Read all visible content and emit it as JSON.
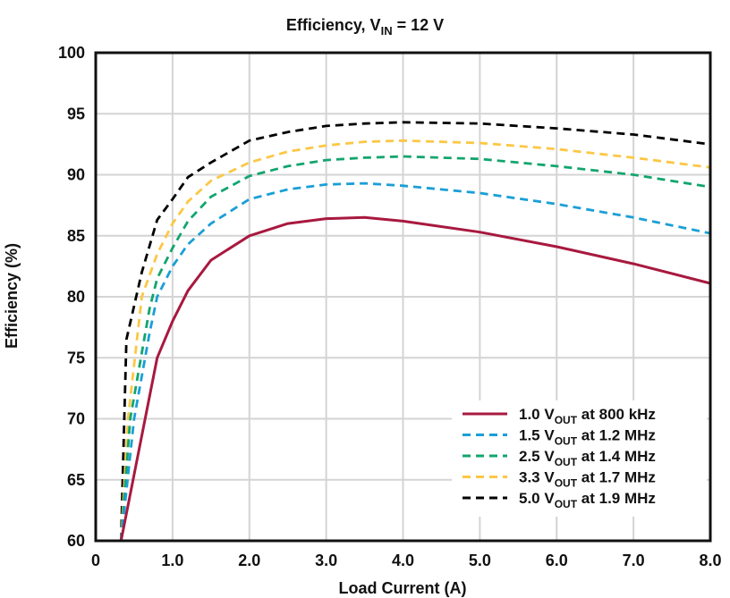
{
  "chart_data": {
    "type": "line",
    "title": {
      "main": "Efficiency, V",
      "sub": "IN",
      "suffix": " = 12 V"
    },
    "xlabel": "Load Current (A)",
    "ylabel": "Efficiency (%)",
    "xlim": [
      0,
      8
    ],
    "ylim": [
      60,
      100
    ],
    "xticks": [
      "0",
      "1.0",
      "2.0",
      "3.0",
      "4.0",
      "5.0",
      "6.0",
      "7.0",
      "8.0"
    ],
    "yticks": [
      "60",
      "65",
      "70",
      "75",
      "80",
      "85",
      "90",
      "95",
      "100"
    ],
    "grid": true,
    "legend_position": "bottom-right",
    "series": [
      {
        "name": {
          "main": "1.0 V",
          "sub": "OUT",
          "suffix": " at 800 kHz"
        },
        "color": "#a8193f",
        "dash": "solid",
        "x": [
          0.33,
          0.8,
          1.0,
          1.2,
          1.5,
          2.0,
          2.5,
          3.0,
          3.5,
          4.0,
          5.0,
          6.0,
          7.0,
          8.0
        ],
        "y": [
          60,
          75,
          78,
          80.5,
          83,
          85,
          86,
          86.4,
          86.5,
          86.2,
          85.3,
          84.1,
          82.7,
          81.1
        ]
      },
      {
        "name": {
          "main": "1.5 V",
          "sub": "OUT",
          "suffix": " at 1.2 MHz"
        },
        "color": "#1a9fd6",
        "dash": "dashed",
        "x": [
          0.33,
          0.5,
          0.7,
          0.8,
          1.0,
          1.2,
          1.5,
          2.0,
          2.5,
          3.0,
          3.5,
          4.0,
          5.0,
          6.0,
          7.0,
          8.0
        ],
        "y": [
          60,
          70,
          77,
          80,
          82.5,
          84.3,
          86,
          88,
          88.8,
          89.2,
          89.3,
          89.1,
          88.5,
          87.6,
          86.5,
          85.2
        ]
      },
      {
        "name": {
          "main": "2.5 V",
          "sub": "OUT",
          "suffix": " at 1.4 MHz"
        },
        "color": "#12a56e",
        "dash": "dashed",
        "x": [
          0.33,
          0.45,
          0.7,
          0.8,
          1.0,
          1.2,
          1.5,
          2.0,
          2.5,
          3.0,
          3.5,
          4.0,
          5.0,
          6.0,
          7.0,
          8.0
        ],
        "y": [
          60,
          70,
          79,
          81.5,
          84,
          86.2,
          88.2,
          89.9,
          90.7,
          91.2,
          91.4,
          91.5,
          91.3,
          90.7,
          90.0,
          89.0
        ]
      },
      {
        "name": {
          "main": "3.3 V",
          "sub": "OUT",
          "suffix": " at 1.7 MHz"
        },
        "color": "#fcc745",
        "dash": "dashed",
        "x": [
          0.33,
          0.42,
          0.6,
          0.8,
          1.0,
          1.2,
          1.5,
          2.0,
          2.5,
          3.0,
          3.5,
          4.0,
          5.0,
          6.0,
          7.0,
          8.0
        ],
        "y": [
          60,
          70,
          80,
          83.5,
          86,
          87.8,
          89.5,
          91,
          91.9,
          92.4,
          92.7,
          92.8,
          92.6,
          92.1,
          91.4,
          90.6
        ]
      },
      {
        "name": {
          "main": "5.0 V",
          "sub": "OUT",
          "suffix": " at 1.9 MHz"
        },
        "color": "#000000",
        "dash": "dashed",
        "x": [
          0.33,
          0.4,
          0.6,
          0.8,
          1.0,
          1.2,
          1.5,
          2.0,
          2.5,
          3.0,
          3.5,
          4.0,
          5.0,
          6.0,
          7.0,
          8.0
        ],
        "y": [
          60,
          76.5,
          82,
          86.3,
          88,
          89.8,
          91,
          92.8,
          93.5,
          94,
          94.2,
          94.3,
          94.2,
          93.8,
          93.3,
          92.5
        ]
      }
    ]
  }
}
